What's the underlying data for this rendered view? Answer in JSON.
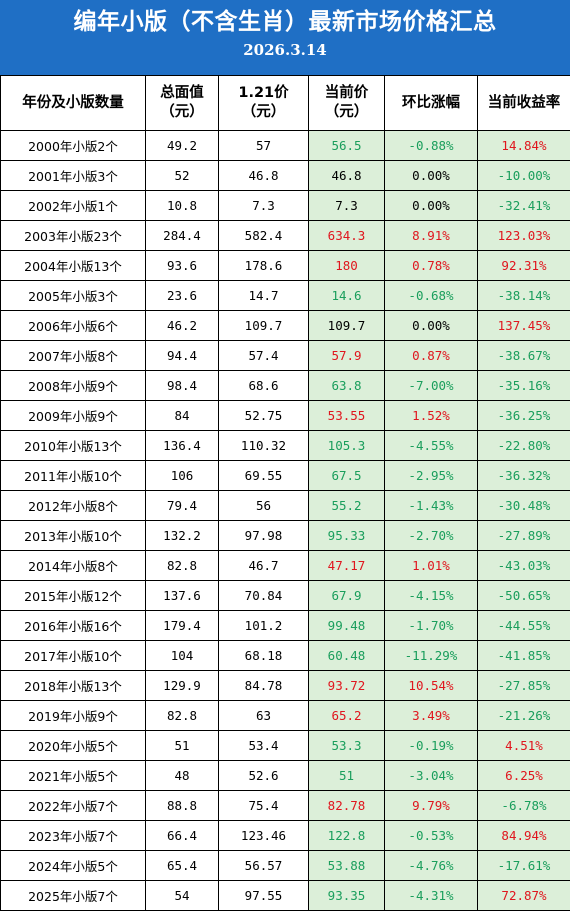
{
  "header": {
    "title": "编年小版（不含生肖）最新市场价格汇总",
    "date": "2026.3.14"
  },
  "columns": [
    "年份及小版数量",
    "总面值\n（元）",
    "1.21价\n（元）",
    "当前价\n（元）",
    "环比涨幅",
    "当前收益率"
  ],
  "colors": {
    "header_bg": "#1f6fc5",
    "up": "#e0161e",
    "down": "#1a9e5c",
    "highlight_bg": "#dcefd9"
  },
  "rows": [
    {
      "name": "2000年小版2个",
      "face": "49.2",
      "p121": "57",
      "cur": "56.5",
      "cur_c": "green",
      "chg": "-0.88%",
      "chg_c": "green",
      "ret": "14.84%",
      "ret_c": "red"
    },
    {
      "name": "2001年小版3个",
      "face": "52",
      "p121": "46.8",
      "cur": "46.8",
      "cur_c": "black",
      "chg": "0.00%",
      "chg_c": "black",
      "ret": "-10.00%",
      "ret_c": "green"
    },
    {
      "name": "2002年小版1个",
      "face": "10.8",
      "p121": "7.3",
      "cur": "7.3",
      "cur_c": "black",
      "chg": "0.00%",
      "chg_c": "black",
      "ret": "-32.41%",
      "ret_c": "green"
    },
    {
      "name": "2003年小版23个",
      "face": "284.4",
      "p121": "582.4",
      "cur": "634.3",
      "cur_c": "red",
      "chg": "8.91%",
      "chg_c": "red",
      "ret": "123.03%",
      "ret_c": "red"
    },
    {
      "name": "2004年小版13个",
      "face": "93.6",
      "p121": "178.6",
      "cur": "180",
      "cur_c": "red",
      "chg": "0.78%",
      "chg_c": "red",
      "ret": "92.31%",
      "ret_c": "red"
    },
    {
      "name": "2005年小版3个",
      "face": "23.6",
      "p121": "14.7",
      "cur": "14.6",
      "cur_c": "green",
      "chg": "-0.68%",
      "chg_c": "green",
      "ret": "-38.14%",
      "ret_c": "green"
    },
    {
      "name": "2006年小版6个",
      "face": "46.2",
      "p121": "109.7",
      "cur": "109.7",
      "cur_c": "black",
      "chg": "0.00%",
      "chg_c": "black",
      "ret": "137.45%",
      "ret_c": "red"
    },
    {
      "name": "2007年小版8个",
      "face": "94.4",
      "p121": "57.4",
      "cur": "57.9",
      "cur_c": "red",
      "chg": "0.87%",
      "chg_c": "red",
      "ret": "-38.67%",
      "ret_c": "green"
    },
    {
      "name": "2008年小版9个",
      "face": "98.4",
      "p121": "68.6",
      "cur": "63.8",
      "cur_c": "green",
      "chg": "-7.00%",
      "chg_c": "green",
      "ret": "-35.16%",
      "ret_c": "green"
    },
    {
      "name": "2009年小版9个",
      "face": "84",
      "p121": "52.75",
      "cur": "53.55",
      "cur_c": "red",
      "chg": "1.52%",
      "chg_c": "red",
      "ret": "-36.25%",
      "ret_c": "green"
    },
    {
      "name": "2010年小版13个",
      "face": "136.4",
      "p121": "110.32",
      "cur": "105.3",
      "cur_c": "green",
      "chg": "-4.55%",
      "chg_c": "green",
      "ret": "-22.80%",
      "ret_c": "green"
    },
    {
      "name": "2011年小版10个",
      "face": "106",
      "p121": "69.55",
      "cur": "67.5",
      "cur_c": "green",
      "chg": "-2.95%",
      "chg_c": "green",
      "ret": "-36.32%",
      "ret_c": "green"
    },
    {
      "name": "2012年小版8个",
      "face": "79.4",
      "p121": "56",
      "cur": "55.2",
      "cur_c": "green",
      "chg": "-1.43%",
      "chg_c": "green",
      "ret": "-30.48%",
      "ret_c": "green"
    },
    {
      "name": "2013年小版10个",
      "face": "132.2",
      "p121": "97.98",
      "cur": "95.33",
      "cur_c": "green",
      "chg": "-2.70%",
      "chg_c": "green",
      "ret": "-27.89%",
      "ret_c": "green"
    },
    {
      "name": "2014年小版8个",
      "face": "82.8",
      "p121": "46.7",
      "cur": "47.17",
      "cur_c": "red",
      "chg": "1.01%",
      "chg_c": "red",
      "ret": "-43.03%",
      "ret_c": "green"
    },
    {
      "name": "2015年小版12个",
      "face": "137.6",
      "p121": "70.84",
      "cur": "67.9",
      "cur_c": "green",
      "chg": "-4.15%",
      "chg_c": "green",
      "ret": "-50.65%",
      "ret_c": "green"
    },
    {
      "name": "2016年小版16个",
      "face": "179.4",
      "p121": "101.2",
      "cur": "99.48",
      "cur_c": "green",
      "chg": "-1.70%",
      "chg_c": "green",
      "ret": "-44.55%",
      "ret_c": "green"
    },
    {
      "name": "2017年小版10个",
      "face": "104",
      "p121": "68.18",
      "cur": "60.48",
      "cur_c": "green",
      "chg": "-11.29%",
      "chg_c": "green",
      "ret": "-41.85%",
      "ret_c": "green"
    },
    {
      "name": "2018年小版13个",
      "face": "129.9",
      "p121": "84.78",
      "cur": "93.72",
      "cur_c": "red",
      "chg": "10.54%",
      "chg_c": "red",
      "ret": "-27.85%",
      "ret_c": "green"
    },
    {
      "name": "2019年小版9个",
      "face": "82.8",
      "p121": "63",
      "cur": "65.2",
      "cur_c": "red",
      "chg": "3.49%",
      "chg_c": "red",
      "ret": "-21.26%",
      "ret_c": "green"
    },
    {
      "name": "2020年小版5个",
      "face": "51",
      "p121": "53.4",
      "cur": "53.3",
      "cur_c": "green",
      "chg": "-0.19%",
      "chg_c": "green",
      "ret": "4.51%",
      "ret_c": "red"
    },
    {
      "name": "2021年小版5个",
      "face": "48",
      "p121": "52.6",
      "cur": "51",
      "cur_c": "green",
      "chg": "-3.04%",
      "chg_c": "green",
      "ret": "6.25%",
      "ret_c": "red"
    },
    {
      "name": "2022年小版7个",
      "face": "88.8",
      "p121": "75.4",
      "cur": "82.78",
      "cur_c": "red",
      "chg": "9.79%",
      "chg_c": "red",
      "ret": "-6.78%",
      "ret_c": "green"
    },
    {
      "name": "2023年小版7个",
      "face": "66.4",
      "p121": "123.46",
      "cur": "122.8",
      "cur_c": "green",
      "chg": "-0.53%",
      "chg_c": "green",
      "ret": "84.94%",
      "ret_c": "red"
    },
    {
      "name": "2024年小版5个",
      "face": "65.4",
      "p121": "56.57",
      "cur": "53.88",
      "cur_c": "green",
      "chg": "-4.76%",
      "chg_c": "green",
      "ret": "-17.61%",
      "ret_c": "green"
    },
    {
      "name": "2025年小版7个",
      "face": "54",
      "p121": "97.55",
      "cur": "93.35",
      "cur_c": "green",
      "chg": "-4.31%",
      "chg_c": "green",
      "ret": "72.87%",
      "ret_c": "red"
    }
  ]
}
